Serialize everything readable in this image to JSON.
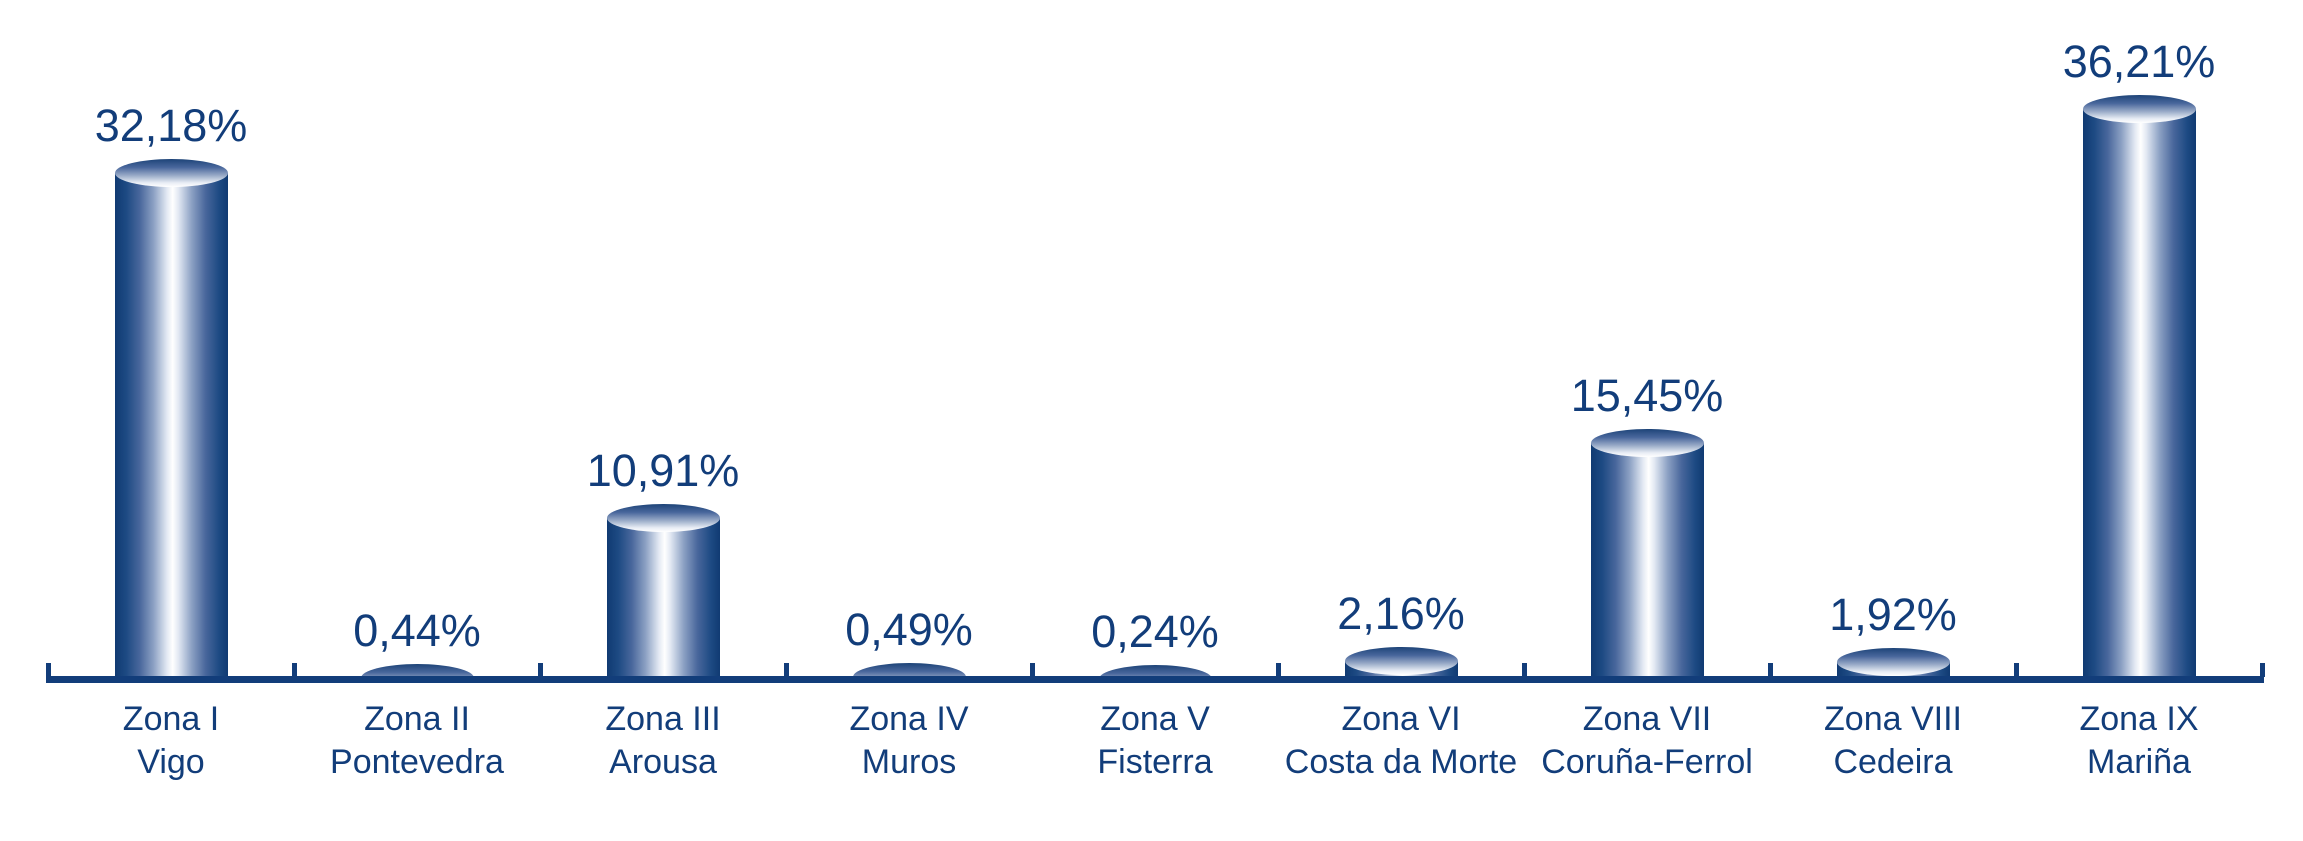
{
  "chart_data": {
    "type": "bar",
    "style": "3d-cylinder-bars",
    "title": "",
    "xlabel": "",
    "ylabel": "",
    "legend": "none",
    "grid": false,
    "value_axis_visible": false,
    "value_suffix": "%",
    "decimal_separator": ",",
    "categories": [
      "Zona I Vigo",
      "Zona II Pontevedra",
      "Zona III Arousa",
      "Zona IV Muros",
      "Zona V Fisterra",
      "Zona VI Costa da Morte",
      "Zona VII Coruña-Ferrol",
      "Zona VIII Cedeira",
      "Zona IX Mariña"
    ],
    "values": [
      32.18,
      0.44,
      10.91,
      0.49,
      0.24,
      2.16,
      15.45,
      1.92,
      36.21
    ],
    "points": [
      {
        "line1": "Zona I",
        "line2": "Vigo",
        "value": 32.18,
        "value_label": "32,18%"
      },
      {
        "line1": "Zona II",
        "line2": "Pontevedra",
        "value": 0.44,
        "value_label": "0,44%"
      },
      {
        "line1": "Zona III",
        "line2": "Arousa",
        "value": 10.91,
        "value_label": "10,91%"
      },
      {
        "line1": "Zona IV",
        "line2": "Muros",
        "value": 0.49,
        "value_label": "0,49%"
      },
      {
        "line1": "Zona V",
        "line2": "Fisterra",
        "value": 0.24,
        "value_label": "0,24%"
      },
      {
        "line1": "Zona VI",
        "line2": "Costa da Morte",
        "value": 2.16,
        "value_label": "2,16%"
      },
      {
        "line1": "Zona VII",
        "line2": "Coruña-Ferrol",
        "value": 15.45,
        "value_label": "15,45%"
      },
      {
        "line1": "Zona VIII",
        "line2": "Cedeira",
        "value": 1.92,
        "value_label": "1,92%"
      },
      {
        "line1": "Zona IX",
        "line2": "Mariña",
        "value": 36.21,
        "value_label": "36,21%"
      }
    ],
    "colors": {
      "text_navy": "#123d7a",
      "axis_navy": "#123d7a",
      "bar_edge_navy": "#103a72",
      "bar_highlight": "#ffffff"
    }
  }
}
